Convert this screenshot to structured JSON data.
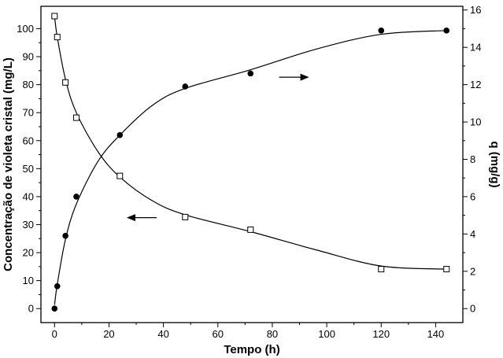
{
  "chart_data": {
    "type": "scatter",
    "title": "",
    "xlabel": "Tempo (h)",
    "ylabel_left": "Concentração de violeta cristal (mg/L)",
    "ylabel_right": "q (mg/g)",
    "xlim": [
      -5,
      150
    ],
    "ylim_left": [
      -5,
      108
    ],
    "ylim_right": [
      -0.75,
      16.2
    ],
    "x_ticks": [
      0,
      20,
      40,
      60,
      80,
      100,
      120,
      140
    ],
    "y_ticks_left": [
      0,
      10,
      20,
      30,
      40,
      50,
      60,
      70,
      80,
      90,
      100
    ],
    "y_ticks_right": [
      0,
      2,
      4,
      6,
      8,
      10,
      12,
      14,
      16
    ],
    "grid": false,
    "series": [
      {
        "marker": "open-square",
        "axis": "left",
        "x": [
          0,
          1,
          4,
          8,
          24,
          48,
          72,
          120,
          144
        ],
        "y": [
          104.5,
          97,
          80.8,
          68.2,
          47.4,
          32.7,
          28.2,
          14.1,
          14.1
        ],
        "fit_curve": true
      },
      {
        "marker": "filled-circle",
        "axis": "right",
        "x": [
          0,
          1,
          4,
          8,
          24,
          48,
          72,
          120,
          144
        ],
        "y": [
          0,
          1.2,
          3.9,
          6.0,
          9.3,
          11.9,
          12.6,
          14.9,
          14.9
        ],
        "fit_curve": true
      }
    ],
    "annotations": [
      {
        "type": "arrow",
        "direction": "left",
        "points_to": "left-axis",
        "x": 32,
        "y": 32.5
      },
      {
        "type": "arrow",
        "direction": "right",
        "points_to": "right-axis",
        "x": 88,
        "y": 12.4
      }
    ],
    "colors": {
      "axes": "#000000",
      "markers": "#000000",
      "curves": "#000000",
      "background": "#ffffff"
    }
  }
}
